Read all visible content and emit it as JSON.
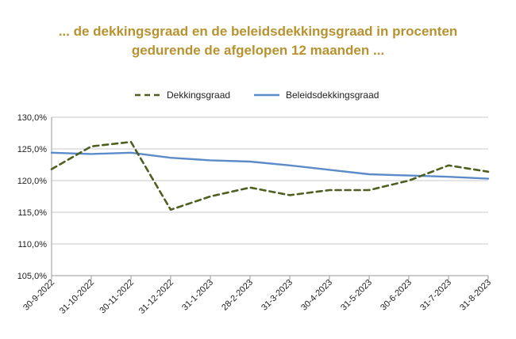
{
  "title_line1": "... de dekkingsgraad en de beleidsdekkingsgraad in procenten",
  "title_line2": "gedurende de afgelopen 12 maanden ...",
  "chart_data": {
    "type": "line",
    "categories": [
      "30-9-2022",
      "31-10-2022",
      "30-11-2022",
      "31-12-2022",
      "31-1-2023",
      "28-2-2023",
      "31-3-2023",
      "30-4-2023",
      "31-5-2023",
      "30-6-2023",
      "31-7-2023",
      "31-8-2023"
    ],
    "series": [
      {
        "name": "Dekkingsgraad",
        "style": "dashed",
        "color": "#4f5f21",
        "values": [
          121.8,
          125.4,
          126.1,
          115.4,
          117.5,
          118.9,
          117.7,
          118.5,
          118.5,
          120.0,
          122.4,
          121.4
        ]
      },
      {
        "name": "Beleidsdekkingsgraad",
        "style": "solid",
        "color": "#5b8cc9",
        "values": [
          124.4,
          124.2,
          124.4,
          123.6,
          123.2,
          123.0,
          122.4,
          121.7,
          121.0,
          120.8,
          120.6,
          120.3
        ]
      }
    ],
    "y_ticks": [
      "105,0%",
      "110,0%",
      "115,0%",
      "120,0%",
      "125,0%",
      "130,0%"
    ],
    "ylim": [
      105,
      130
    ],
    "grid": true,
    "legend": "top-center",
    "xlabel": "",
    "ylabel": ""
  }
}
